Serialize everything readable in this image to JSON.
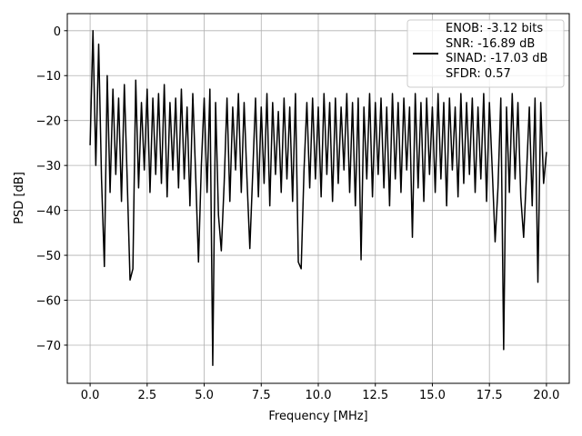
{
  "chart_data": {
    "type": "line",
    "xlabel": "Frequency [MHz]",
    "ylabel": "PSD [dB]",
    "xlim": [
      -1.0,
      21.0
    ],
    "ylim": [
      -78.5,
      3.8
    ],
    "xticks": [
      {
        "value": 0,
        "label": "0.0"
      },
      {
        "value": 2.5,
        "label": "2.5"
      },
      {
        "value": 5,
        "label": "5.0"
      },
      {
        "value": 7.5,
        "label": "7.5"
      },
      {
        "value": 10,
        "label": "10.0"
      },
      {
        "value": 12.5,
        "label": "12.5"
      },
      {
        "value": 15,
        "label": "15.0"
      },
      {
        "value": 17.5,
        "label": "17.5"
      },
      {
        "value": 20,
        "label": "20.0"
      }
    ],
    "yticks": [
      0,
      {
        "value": -10,
        "label": "−10"
      },
      {
        "value": -20,
        "label": "−20"
      },
      {
        "value": -30,
        "label": "−30"
      },
      {
        "value": -40,
        "label": "−40"
      },
      {
        "value": -50,
        "label": "−50"
      },
      {
        "value": -60,
        "label": "−60"
      },
      {
        "value": -70,
        "label": "−70"
      }
    ],
    "grid": true,
    "legend": "upper right",
    "x": [
      0,
      0.125,
      0.25,
      0.375,
      0.5,
      0.625,
      0.75,
      0.875,
      1,
      1.125,
      1.25,
      1.375,
      1.5,
      1.625,
      1.75,
      1.875,
      2,
      2.125,
      2.25,
      2.375,
      2.5,
      2.625,
      2.75,
      2.875,
      3,
      3.125,
      3.25,
      3.375,
      3.5,
      3.625,
      3.75,
      3.875,
      4,
      4.125,
      4.25,
      4.375,
      4.5,
      4.625,
      4.75,
      4.875,
      5,
      5.125,
      5.25,
      5.375,
      5.5,
      5.625,
      5.75,
      5.875,
      6,
      6.125,
      6.25,
      6.375,
      6.5,
      6.625,
      6.75,
      6.875,
      7,
      7.125,
      7.25,
      7.375,
      7.5,
      7.625,
      7.75,
      7.875,
      8,
      8.125,
      8.25,
      8.375,
      8.5,
      8.625,
      8.75,
      8.875,
      9,
      9.125,
      9.25,
      9.375,
      9.5,
      9.625,
      9.75,
      9.875,
      10,
      10.125,
      10.25,
      10.375,
      10.5,
      10.625,
      10.75,
      10.875,
      11,
      11.125,
      11.25,
      11.375,
      11.5,
      11.625,
      11.75,
      11.875,
      12,
      12.125,
      12.25,
      12.375,
      12.5,
      12.625,
      12.75,
      12.875,
      13,
      13.125,
      13.25,
      13.375,
      13.5,
      13.625,
      13.75,
      13.875,
      14,
      14.125,
      14.25,
      14.375,
      14.5,
      14.625,
      14.75,
      14.875,
      15,
      15.125,
      15.25,
      15.375,
      15.5,
      15.625,
      15.75,
      15.875,
      16,
      16.125,
      16.25,
      16.375,
      16.5,
      16.625,
      16.75,
      16.875,
      17,
      17.125,
      17.25,
      17.375,
      17.5,
      17.625,
      17.75,
      17.875,
      18,
      18.125,
      18.25,
      18.375,
      18.5,
      18.625,
      18.75,
      18.875,
      19,
      19.125,
      19.25,
      19.375,
      19.5,
      19.625,
      19.75,
      19.875,
      20
    ],
    "series": [
      {
        "name": "ENOB: -3.12 bits\nSNR: -16.89 dB\nSINAD: -17.03 dB\nSFDR: 0.57",
        "color": "#000000",
        "values": [
          -25.5,
          0,
          -30,
          -3,
          -33,
          -52.5,
          -10,
          -36,
          -13,
          -32,
          -15,
          -38,
          -12,
          -33,
          -55.5,
          -53,
          -11,
          -35,
          -16,
          -31,
          -13,
          -36,
          -15,
          -32,
          -14,
          -34,
          -12,
          -37,
          -16,
          -31,
          -15,
          -35,
          -13,
          -33,
          -17,
          -39,
          -14,
          -32,
          -51.5,
          -30,
          -15,
          -36,
          -13,
          -74.5,
          -16,
          -41,
          -49,
          -34,
          -15,
          -38,
          -17,
          -31,
          -14,
          -36,
          -16,
          -33,
          -48.5,
          -32,
          -15,
          -37,
          -17,
          -34,
          -14,
          -39,
          -16,
          -32,
          -18,
          -36,
          -15,
          -33,
          -17,
          -38,
          -14,
          -51.5,
          -53,
          -31,
          -16,
          -35,
          -15,
          -33,
          -17,
          -37,
          -14,
          -32,
          -16,
          -38,
          -15,
          -34,
          -17,
          -31,
          -14,
          -36,
          -16,
          -39,
          -15,
          -51,
          -17,
          -33,
          -14,
          -37,
          -16,
          -32,
          -15,
          -35,
          -17,
          -39,
          -14,
          -33,
          -16,
          -36,
          -15,
          -31,
          -17,
          -46,
          -14,
          -35,
          -16,
          -38,
          -15,
          -32,
          -17,
          -36,
          -14,
          -33,
          -16,
          -39,
          -15,
          -31,
          -17,
          -37,
          -14,
          -34,
          -16,
          -32,
          -15,
          -36,
          -17,
          -33,
          -14,
          -38,
          -16,
          -31,
          -47,
          -35,
          -15,
          -71,
          -17,
          -36,
          -14,
          -33,
          -16,
          -37,
          -46,
          -32,
          -17,
          -39,
          -15,
          -56,
          -16,
          -34,
          -27
        ]
      }
    ]
  }
}
